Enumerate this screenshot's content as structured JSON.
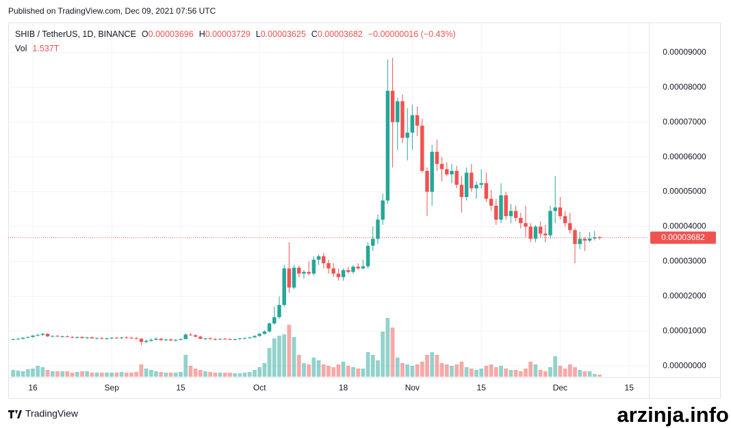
{
  "page": {
    "published": "Published on TradingView.com, Dec 09, 2021 07:56 UTC",
    "logo": "TradingView",
    "watermark": "arzinja.info"
  },
  "header": {
    "symbol": "SHIB / TetherUS, 1D, BINANCE",
    "ohlc": [
      {
        "label": "O",
        "value": "0.00003696"
      },
      {
        "label": "H",
        "value": "0.00003729"
      },
      {
        "label": "L",
        "value": "0.00003625"
      },
      {
        "label": "C",
        "value": "0.00003682"
      }
    ],
    "change": "−0.00000016 (−0.43%)",
    "vol_label": "Vol",
    "vol_value": "1.537T"
  },
  "chart_data": {
    "type": "candlestick",
    "up_color": "#26a69a",
    "down_color": "#ef5350",
    "grid": true,
    "xlim": [
      "2021-08-11",
      "2021-12-19"
    ],
    "xticks": [
      {
        "value": "2021-08-16",
        "label": "16"
      },
      {
        "value": "2021-09-01",
        "label": "Sep"
      },
      {
        "value": "2021-09-15",
        "label": "15"
      },
      {
        "value": "2021-10-01",
        "label": "Oct"
      },
      {
        "value": "2021-10-18",
        "label": "18"
      },
      {
        "value": "2021-11-01",
        "label": "Nov"
      },
      {
        "value": "2021-11-15",
        "label": "15"
      },
      {
        "value": "2021-12-01",
        "label": "Dec"
      },
      {
        "value": "2021-12-15",
        "label": "15"
      }
    ],
    "ylim": [
      -3.3e-06,
      9.86e-05
    ],
    "yticks": [
      {
        "value": 0,
        "label": "0.00000000"
      },
      {
        "value": 1e-05,
        "label": "0.00001000"
      },
      {
        "value": 2e-05,
        "label": "0.00002000"
      },
      {
        "value": 3e-05,
        "label": "0.00003000"
      },
      {
        "value": 4e-05,
        "label": "0.00004000"
      },
      {
        "value": 5e-05,
        "label": "0.00005000"
      },
      {
        "value": 6e-05,
        "label": "0.00006000"
      },
      {
        "value": 7e-05,
        "label": "0.00007000"
      },
      {
        "value": 8e-05,
        "label": "0.00008000"
      },
      {
        "value": 9e-05,
        "label": "0.00009000"
      }
    ],
    "last_price": {
      "value": 3.682e-05,
      "label": "0.00003682"
    },
    "x": [
      "2021-08-12",
      "2021-08-13",
      "2021-08-14",
      "2021-08-15",
      "2021-08-16",
      "2021-08-17",
      "2021-08-18",
      "2021-08-19",
      "2021-08-20",
      "2021-08-21",
      "2021-08-22",
      "2021-08-23",
      "2021-08-24",
      "2021-08-25",
      "2021-08-26",
      "2021-08-27",
      "2021-08-28",
      "2021-08-29",
      "2021-08-30",
      "2021-08-31",
      "2021-09-01",
      "2021-09-02",
      "2021-09-03",
      "2021-09-04",
      "2021-09-05",
      "2021-09-06",
      "2021-09-07",
      "2021-09-08",
      "2021-09-09",
      "2021-09-10",
      "2021-09-11",
      "2021-09-12",
      "2021-09-13",
      "2021-09-14",
      "2021-09-15",
      "2021-09-16",
      "2021-09-17",
      "2021-09-18",
      "2021-09-19",
      "2021-09-20",
      "2021-09-21",
      "2021-09-22",
      "2021-09-23",
      "2021-09-24",
      "2021-09-25",
      "2021-09-26",
      "2021-09-27",
      "2021-09-28",
      "2021-09-29",
      "2021-09-30",
      "2021-10-01",
      "2021-10-02",
      "2021-10-03",
      "2021-10-04",
      "2021-10-05",
      "2021-10-06",
      "2021-10-07",
      "2021-10-08",
      "2021-10-09",
      "2021-10-10",
      "2021-10-11",
      "2021-10-12",
      "2021-10-13",
      "2021-10-14",
      "2021-10-15",
      "2021-10-16",
      "2021-10-17",
      "2021-10-18",
      "2021-10-19",
      "2021-10-20",
      "2021-10-21",
      "2021-10-22",
      "2021-10-23",
      "2021-10-24",
      "2021-10-25",
      "2021-10-26",
      "2021-10-27",
      "2021-10-28",
      "2021-10-29",
      "2021-10-30",
      "2021-10-31",
      "2021-11-01",
      "2021-11-02",
      "2021-11-03",
      "2021-11-04",
      "2021-11-05",
      "2021-11-06",
      "2021-11-07",
      "2021-11-08",
      "2021-11-09",
      "2021-11-10",
      "2021-11-11",
      "2021-11-12",
      "2021-11-13",
      "2021-11-14",
      "2021-11-15",
      "2021-11-16",
      "2021-11-17",
      "2021-11-18",
      "2021-11-19",
      "2021-11-20",
      "2021-11-21",
      "2021-11-22",
      "2021-11-23",
      "2021-11-24",
      "2021-11-25",
      "2021-11-26",
      "2021-11-27",
      "2021-11-28",
      "2021-11-29",
      "2021-11-30",
      "2021-12-01",
      "2021-12-02",
      "2021-12-03",
      "2021-12-04",
      "2021-12-05",
      "2021-12-06",
      "2021-12-07",
      "2021-12-08",
      "2021-12-09"
    ],
    "candles": [
      [
        7.6e-06,
        7.9e-06,
        7.4e-06,
        7.7e-06
      ],
      [
        7.7e-06,
        8e-06,
        7.5e-06,
        7.8e-06
      ],
      [
        7.8e-06,
        8.2e-06,
        7.6e-06,
        8.1e-06
      ],
      [
        8.1e-06,
        8.5e-06,
        7.9e-06,
        8.3e-06
      ],
      [
        8.3e-06,
        8.9e-06,
        8.1e-06,
        8.7e-06
      ],
      [
        8.7e-06,
        9.3e-06,
        8.5e-06,
        8.9e-06
      ],
      [
        8.9e-06,
        9.4e-06,
        8.6e-06,
        9.2e-06
      ],
      [
        9.2e-06,
        9.4e-06,
        8.3e-06,
        8.5e-06
      ],
      [
        8.5e-06,
        8.8e-06,
        8.2e-06,
        8.6e-06
      ],
      [
        8.6e-06,
        8.9e-06,
        8.3e-06,
        8.4e-06
      ],
      [
        8.4e-06,
        8.7e-06,
        8.1e-06,
        8.5e-06
      ],
      [
        8.5e-06,
        8.8e-06,
        8.2e-06,
        8.3e-06
      ],
      [
        8.3e-06,
        8.6e-06,
        7.9e-06,
        8.1e-06
      ],
      [
        8.1e-06,
        8.5e-06,
        7.8e-06,
        8.3e-06
      ],
      [
        8.3e-06,
        8.6e-06,
        7.9e-06,
        8e-06
      ],
      [
        8e-06,
        8.4e-06,
        7.7e-06,
        8.2e-06
      ],
      [
        8.2e-06,
        8.5e-06,
        7.8e-06,
        7.9e-06
      ],
      [
        7.9e-06,
        8.2e-06,
        7.6e-06,
        8e-06
      ],
      [
        8e-06,
        8.3e-06,
        7.6e-06,
        7.8e-06
      ],
      [
        7.8e-06,
        8.1e-06,
        7.5e-06,
        7.9e-06
      ],
      [
        7.9e-06,
        8.3e-06,
        7.6e-06,
        8.1e-06
      ],
      [
        8.1e-06,
        8.4e-06,
        7.8e-06,
        8e-06
      ],
      [
        8e-06,
        8.3e-06,
        7.7e-06,
        8.2e-06
      ],
      [
        8.2e-06,
        8.5e-06,
        7.9e-06,
        8.1e-06
      ],
      [
        8.1e-06,
        8.4e-06,
        7.8e-06,
        8e-06
      ],
      [
        8e-06,
        8.3e-06,
        7.6e-06,
        7.8e-06
      ],
      [
        7.8e-06,
        8e-06,
        5.9e-06,
        6.9e-06
      ],
      [
        6.9e-06,
        7.6e-06,
        6.5e-06,
        7.2e-06
      ],
      [
        7.2e-06,
        7.9e-06,
        7e-06,
        7.5e-06
      ],
      [
        7.5e-06,
        8.2e-06,
        7.3e-06,
        7.8e-06
      ],
      [
        7.8e-06,
        8.1e-06,
        7.2e-06,
        7.4e-06
      ],
      [
        7.4e-06,
        7.8e-06,
        7.1e-06,
        7.6e-06
      ],
      [
        7.6e-06,
        7.9e-06,
        7.2e-06,
        7.3e-06
      ],
      [
        7.3e-06,
        7.7e-06,
        7e-06,
        7.5e-06
      ],
      [
        7.5e-06,
        8e-06,
        7.3e-06,
        7.7e-06
      ],
      [
        7.7e-06,
        9.3e-06,
        7.6e-06,
        9e-06
      ],
      [
        9e-06,
        9.5e-06,
        8.6e-06,
        8.8e-06
      ],
      [
        8.8e-06,
        9.1e-06,
        8.2e-06,
        8.4e-06
      ],
      [
        8.4e-06,
        8.7e-06,
        7.6e-06,
        7.8e-06
      ],
      [
        7.8e-06,
        8.1e-06,
        7.4e-06,
        7.9e-06
      ],
      [
        7.9e-06,
        8.2e-06,
        7.5e-06,
        7.7e-06
      ],
      [
        7.7e-06,
        8e-06,
        7.3e-06,
        7.6e-06
      ],
      [
        7.6e-06,
        7.9e-06,
        7.4e-06,
        7.8e-06
      ],
      [
        7.8e-06,
        8e-06,
        7.5e-06,
        7.7e-06
      ],
      [
        7.7e-06,
        8e-06,
        7.4e-06,
        7.6e-06
      ],
      [
        7.6e-06,
        7.9e-06,
        7.3e-06,
        7.7e-06
      ],
      [
        7.7e-06,
        8e-06,
        7.4e-06,
        7.9e-06
      ],
      [
        7.9e-06,
        8.2e-06,
        7.6e-06,
        8e-06
      ],
      [
        8e-06,
        8.4e-06,
        7.8e-06,
        8.2e-06
      ],
      [
        8.2e-06,
        8.8e-06,
        8e-06,
        8.6e-06
      ],
      [
        8.6e-06,
        9.5e-06,
        8.4e-06,
        9.2e-06
      ],
      [
        9.2e-06,
        1.02e-05,
        9e-06,
        9.9e-06
      ],
      [
        9.9e-06,
        1.25e-05,
        9.6e-06,
        1.22e-05
      ],
      [
        1.22e-05,
        1.7e-05,
        1.18e-05,
        1.4e-05
      ],
      [
        1.4e-05,
        2e-05,
        1.35e-05,
        1.75e-05
      ],
      [
        1.75e-05,
        2.9e-05,
        1.7e-05,
        2.8e-05
      ],
      [
        2.8e-05,
        3.55e-05,
        2.1e-05,
        2.25e-05
      ],
      [
        2.25e-05,
        2.9e-05,
        2.2e-05,
        2.82e-05
      ],
      [
        2.82e-05,
        2.88e-05,
        2.55e-05,
        2.65e-05
      ],
      [
        2.65e-05,
        2.75e-05,
        2.5e-05,
        2.7e-05
      ],
      [
        2.7e-05,
        3e-05,
        2.6e-05,
        2.65e-05
      ],
      [
        2.65e-05,
        3.15e-05,
        2.6e-05,
        3.05e-05
      ],
      [
        3.05e-05,
        3.2e-05,
        2.9e-05,
        3.15e-05
      ],
      [
        3.15e-05,
        3.25e-05,
        2.8e-05,
        2.95e-05
      ],
      [
        2.95e-05,
        3.05e-05,
        2.65e-05,
        2.8e-05
      ],
      [
        2.8e-05,
        2.95e-05,
        2.55e-05,
        2.65e-05
      ],
      [
        2.65e-05,
        2.8e-05,
        2.45e-05,
        2.55e-05
      ],
      [
        2.55e-05,
        2.8e-05,
        2.45e-05,
        2.75e-05
      ],
      [
        2.75e-05,
        2.85e-05,
        2.65e-05,
        2.7e-05
      ],
      [
        2.7e-05,
        2.9e-05,
        2.65e-05,
        2.85e-05
      ],
      [
        2.85e-05,
        2.95e-05,
        2.75e-05,
        2.8e-05
      ],
      [
        2.8e-05,
        3.05e-05,
        2.78e-05,
        2.86e-05
      ],
      [
        2.86e-05,
        3.55e-05,
        2.8e-05,
        3.45e-05
      ],
      [
        3.45e-05,
        4e-05,
        3.3e-05,
        3.65e-05
      ],
      [
        3.65e-05,
        4.35e-05,
        3.5e-05,
        4.2e-05
      ],
      [
        4.2e-05,
        4.95e-05,
        4.05e-05,
        4.75e-05
      ],
      [
        4.75e-05,
        8.8e-05,
        4.65e-05,
        7.9e-05
      ],
      [
        7.9e-05,
        8.85e-05,
        5.7e-05,
        7e-05
      ],
      [
        7e-05,
        7.7e-05,
        6.2e-05,
        7.6e-05
      ],
      [
        7.6e-05,
        7.8e-05,
        6.4e-05,
        6.55e-05
      ],
      [
        6.55e-05,
        7.4e-05,
        5.9e-05,
        6.7e-05
      ],
      [
        6.7e-05,
        7.5e-05,
        6.2e-05,
        7.2e-05
      ],
      [
        7.2e-05,
        7.45e-05,
        6.6e-05,
        6.9e-05
      ],
      [
        6.9e-05,
        7.1e-05,
        5.55e-05,
        5.6e-05
      ],
      [
        5.6e-05,
        5.7e-05,
        4.3e-05,
        5e-05
      ],
      [
        5e-05,
        6.35e-05,
        4.6e-05,
        6.15e-05
      ],
      [
        6.15e-05,
        6.5e-05,
        5.6e-05,
        5.8e-05
      ],
      [
        5.8e-05,
        6e-05,
        5.3e-05,
        5.65e-05
      ],
      [
        5.65e-05,
        5.85e-05,
        5.45e-05,
        5.5e-05
      ],
      [
        5.5e-05,
        5.8e-05,
        5.25e-05,
        5.6e-05
      ],
      [
        5.6e-05,
        5.75e-05,
        5.1e-05,
        5.2e-05
      ],
      [
        5.2e-05,
        5.45e-05,
        4.4e-05,
        4.85e-05
      ],
      [
        4.85e-05,
        5.7e-05,
        4.75e-05,
        5.55e-05
      ],
      [
        5.55e-05,
        5.8e-05,
        5e-05,
        5.1e-05
      ],
      [
        5.1e-05,
        5.3e-05,
        4.8e-05,
        5.2e-05
      ],
      [
        5.2e-05,
        5.65e-05,
        5.1e-05,
        5.25e-05
      ],
      [
        5.25e-05,
        5.55e-05,
        4.7e-05,
        4.8e-05
      ],
      [
        4.8e-05,
        5.05e-05,
        4.45e-05,
        4.6e-05
      ],
      [
        4.6e-05,
        4.8e-05,
        4.05e-05,
        4.2e-05
      ],
      [
        4.2e-05,
        5.25e-05,
        4.1e-05,
        4.9e-05
      ],
      [
        4.9e-05,
        5e-05,
        4.2e-05,
        4.3e-05
      ],
      [
        4.3e-05,
        4.65e-05,
        4.1e-05,
        4.45e-05
      ],
      [
        4.45e-05,
        4.6e-05,
        4.15e-05,
        4.25e-05
      ],
      [
        4.25e-05,
        4.4e-05,
        3.95e-05,
        4.1e-05
      ],
      [
        4.1e-05,
        4.6e-05,
        3.7e-05,
        4e-05
      ],
      [
        4e-05,
        4.1e-05,
        3.55e-05,
        3.65e-05
      ],
      [
        3.65e-05,
        4.05e-05,
        3.55e-05,
        4e-05
      ],
      [
        4e-05,
        4.15e-05,
        3.7e-05,
        3.8e-05
      ],
      [
        3.8e-05,
        4.05e-05,
        3.55e-05,
        3.75e-05
      ],
      [
        3.75e-05,
        4.6e-05,
        3.65e-05,
        4.45e-05
      ],
      [
        4.45e-05,
        5.45e-05,
        4.1e-05,
        4.55e-05
      ],
      [
        4.55e-05,
        4.85e-05,
        4.2e-05,
        4.3e-05
      ],
      [
        4.3e-05,
        4.45e-05,
        4e-05,
        4.1e-05
      ],
      [
        4.1e-05,
        4.4e-05,
        3.8e-05,
        3.9e-05
      ],
      [
        3.9e-05,
        3.95e-05,
        2.95e-05,
        3.5e-05
      ],
      [
        3.5e-05,
        3.85e-05,
        3.35e-05,
        3.65e-05
      ],
      [
        3.65e-05,
        3.7e-05,
        3.3e-05,
        3.6e-05
      ],
      [
        3.6e-05,
        3.85e-05,
        3.55e-05,
        3.66e-05
      ],
      [
        3.66e-05,
        3.88e-05,
        3.6e-05,
        3.696e-05
      ],
      [
        3.696e-05,
        3.729e-05,
        3.625e-05,
        3.682e-05
      ]
    ],
    "volume": [
      5,
      4.5,
      4,
      5.5,
      6,
      8,
      7,
      5,
      4,
      4,
      4,
      4,
      3,
      3.5,
      4,
      4,
      3,
      3,
      3,
      3,
      3,
      3,
      3.5,
      3,
      3,
      3.5,
      9,
      6,
      5,
      4,
      3.5,
      3,
      3,
      3,
      3.5,
      16,
      8,
      6,
      5,
      4,
      3.5,
      3,
      3,
      3,
      3,
      2.5,
      2.5,
      3,
      3.5,
      5,
      7,
      10,
      21,
      28,
      30,
      31,
      38,
      29,
      16,
      10,
      9,
      14,
      12,
      9,
      8,
      7,
      9,
      11,
      8,
      7,
      6,
      6,
      18,
      16,
      12,
      33,
      43,
      36,
      14,
      10,
      9,
      8,
      9,
      11,
      16,
      18,
      16,
      10,
      9,
      8,
      9,
      11,
      7,
      6,
      5,
      6,
      8,
      9,
      7,
      8,
      6,
      5,
      5,
      4,
      6,
      11,
      9,
      5,
      4,
      7,
      15,
      8,
      6,
      9,
      7,
      5,
      4,
      4,
      2,
      1.537
    ]
  }
}
